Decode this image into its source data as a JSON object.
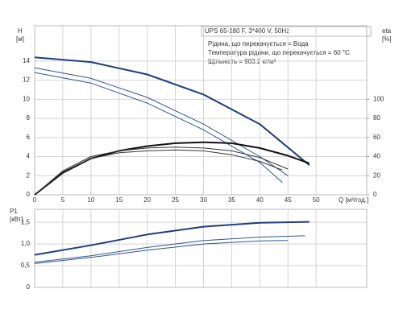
{
  "chart_data": [
    {
      "type": "line",
      "subtitle": "UPS 65-180 F, 3*400 V, 50Hz",
      "annotations": [
        "Рідина, що перекачується = Вода",
        "Температура рідини, що перекачується = 60 °C",
        "Щільність = 983.2 кг/м³"
      ],
      "ylabel": "H",
      "yunit": "[м]",
      "y2label": "eta",
      "y2unit": "[%]",
      "xlabel": "Q [м³/год.]",
      "xlim": [
        0,
        59
      ],
      "xticks": [
        0,
        5,
        10,
        15,
        20,
        25,
        30,
        35,
        40,
        45,
        50
      ],
      "ylim": [
        0,
        17.7
      ],
      "yticks": [
        0,
        2,
        4,
        6,
        8,
        10,
        12,
        14
      ],
      "y2lim": [
        0,
        177
      ],
      "y2ticks": [
        0,
        20,
        40,
        60,
        80,
        100
      ],
      "grid": true,
      "series": [
        {
          "color": "#1e3f7a",
          "width": 2,
          "x": [
            0,
            10,
            20,
            30,
            40,
            48.8
          ],
          "values": [
            14.4,
            13.9,
            12.6,
            10.5,
            7.4,
            3.1
          ]
        },
        {
          "color": "#2f558f",
          "width": 1,
          "x": [
            0,
            10,
            20,
            30,
            40,
            45
          ],
          "values": [
            13.3,
            12.2,
            10.2,
            7.4,
            4.0,
            2.0
          ]
        },
        {
          "color": "#2f558f",
          "width": 1,
          "x": [
            0,
            10,
            20,
            30,
            40,
            44
          ],
          "values": [
            12.8,
            11.7,
            9.6,
            6.8,
            3.4,
            1.3
          ]
        },
        {
          "color": "#111111",
          "width": 2,
          "axis": "y2",
          "x": [
            0,
            5,
            10,
            15,
            20,
            25,
            30,
            35,
            40,
            45,
            48.8
          ],
          "values": [
            0,
            23,
            38,
            46,
            51,
            54,
            55,
            54,
            49,
            41,
            33
          ]
        },
        {
          "color": "#333333",
          "width": 1,
          "axis": "y2",
          "x": [
            0,
            5,
            10,
            15,
            20,
            25,
            30,
            35,
            40,
            45
          ],
          "values": [
            0,
            25,
            40,
            46,
            49,
            50,
            49,
            46,
            39,
            27
          ]
        },
        {
          "color": "#333333",
          "width": 1,
          "axis": "y2",
          "x": [
            0,
            5,
            10,
            15,
            20,
            25,
            30,
            35,
            40,
            44
          ],
          "values": [
            0,
            24,
            38,
            44,
            46,
            47,
            46,
            42,
            35,
            26
          ]
        }
      ]
    },
    {
      "type": "line",
      "ylabel": "P1",
      "yunit": "[кВт]",
      "xlim": [
        0,
        59
      ],
      "ylim": [
        0,
        1.8
      ],
      "yticks": [
        0,
        {
          "value": 0.5,
          "label": "0,5"
        },
        {
          "value": 1.0,
          "label": "1,0"
        },
        {
          "value": 1.5,
          "label": "1,5"
        }
      ],
      "grid": true,
      "series": [
        {
          "color": "#1e3f7a",
          "width": 2,
          "x": [
            0,
            10,
            20,
            30,
            40,
            48.8
          ],
          "values": [
            0.75,
            0.97,
            1.22,
            1.4,
            1.49,
            1.51
          ]
        },
        {
          "color": "#2f558f",
          "width": 1,
          "x": [
            0,
            10,
            20,
            30,
            40,
            48
          ],
          "values": [
            0.58,
            0.73,
            0.92,
            1.08,
            1.16,
            1.19
          ]
        },
        {
          "color": "#2f558f",
          "width": 1,
          "x": [
            0,
            10,
            20,
            30,
            40,
            45
          ],
          "values": [
            0.55,
            0.69,
            0.86,
            1.0,
            1.07,
            1.08
          ]
        }
      ]
    }
  ]
}
